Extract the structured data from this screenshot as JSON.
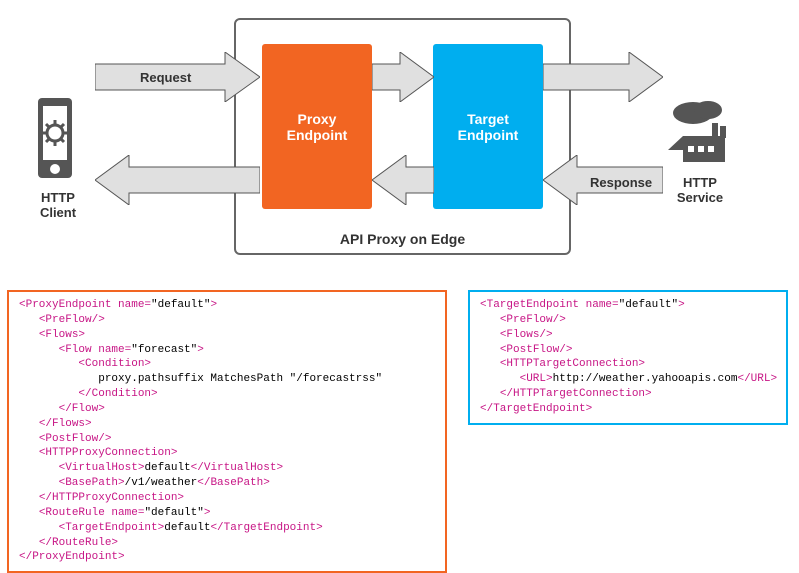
{
  "diagram": {
    "container_label": "API Proxy on Edge",
    "proxy_box": {
      "label": "Proxy\nEndpoint",
      "color": "#f26522"
    },
    "target_box": {
      "label": "Target\nEndpoint",
      "color": "#00aeef"
    },
    "client": {
      "label": "HTTP\nClient",
      "icon_color": "#555"
    },
    "service": {
      "label": "HTTP\nService",
      "icon_color": "#555"
    },
    "request_label": "Request",
    "response_label": "Response",
    "arrow_fill": "#e0e0e0",
    "arrow_stroke": "#555",
    "container_border": "#666"
  },
  "xml_left": {
    "border_color": "#f26522",
    "tag_color": "#c71585",
    "lines": [
      {
        "indent": 0,
        "open": "<ProxyEndpoint",
        "attr": " name=",
        "aval": "\"default\"",
        "close": ">"
      },
      {
        "indent": 1,
        "open": "<PreFlow/>"
      },
      {
        "indent": 1,
        "open": "<Flows>"
      },
      {
        "indent": 2,
        "open": "<Flow",
        "attr": " name=",
        "aval": "\"forecast\"",
        "close": ">"
      },
      {
        "indent": 3,
        "open": "<Condition>"
      },
      {
        "indent": 4,
        "text": "proxy.pathsuffix MatchesPath &quot;/forecastrss&quot;"
      },
      {
        "indent": 3,
        "open": "</Condition>"
      },
      {
        "indent": 2,
        "open": "</Flow>"
      },
      {
        "indent": 1,
        "open": "</Flows>"
      },
      {
        "indent": 1,
        "open": "<PostFlow/>"
      },
      {
        "indent": 1,
        "open": "<HTTPProxyConnection>"
      },
      {
        "indent": 2,
        "open": "<VirtualHost>",
        "text": "default",
        "end": "</VirtualHost>"
      },
      {
        "indent": 2,
        "open": "<BasePath>",
        "text": "/v1/weather",
        "end": "</BasePath>"
      },
      {
        "indent": 1,
        "open": "</HTTPProxyConnection>"
      },
      {
        "indent": 1,
        "open": "<RouteRule",
        "attr": " name=",
        "aval": "\"default\"",
        "close": ">"
      },
      {
        "indent": 2,
        "open": "<TargetEndpoint>",
        "text": "default",
        "end": "</TargetEndpoint>"
      },
      {
        "indent": 1,
        "open": "</RouteRule>"
      },
      {
        "indent": 0,
        "open": "</ProxyEndpoint>"
      }
    ]
  },
  "xml_right": {
    "border_color": "#00aeef",
    "tag_color": "#c71585",
    "lines": [
      {
        "indent": 0,
        "open": "<TargetEndpoint",
        "attr": " name=",
        "aval": "\"default\"",
        "close": ">"
      },
      {
        "indent": 1,
        "open": "<PreFlow/>"
      },
      {
        "indent": 1,
        "open": "<Flows/>"
      },
      {
        "indent": 1,
        "open": "<PostFlow/>"
      },
      {
        "indent": 1,
        "open": "<HTTPTargetConnection>"
      },
      {
        "indent": 2,
        "open": "<URL>",
        "text": "http://weather.yahooapis.com",
        "end": "</URL>"
      },
      {
        "indent": 1,
        "open": "</HTTPTargetConnection>"
      },
      {
        "indent": 0,
        "open": "</TargetEndpoint>"
      }
    ]
  }
}
